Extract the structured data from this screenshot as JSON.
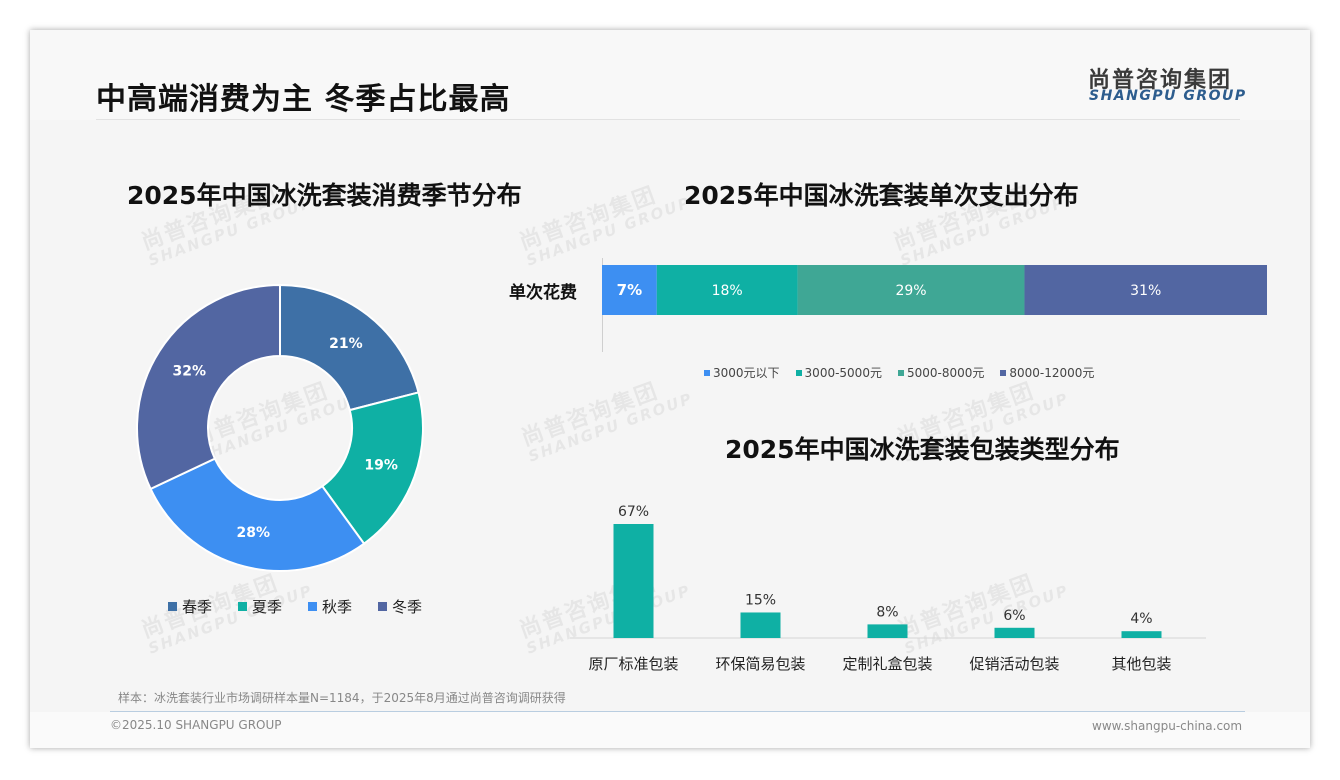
{
  "header": {
    "title": "中高端消费为主 冬季占比最高",
    "logo_cn": "尚普咨询集团",
    "logo_en": "SHANGPU GROUP"
  },
  "watermark": {
    "cn": "尚普咨询集团",
    "en": "SHANGPU GROUP"
  },
  "colors": {
    "spring": "#3e70a6",
    "summer": "#0fb0a4",
    "autumn": "#3d8ff2",
    "winter": "#5266a2",
    "tier1": "#3d8ff2",
    "tier2": "#0fb0a4",
    "tier3": "#3fa795",
    "tier4": "#5266a2",
    "bars": "#0fb0a4"
  },
  "chart_data": [
    {
      "type": "pie",
      "variant": "donut",
      "title": "2025年中国冰洗套装消费季节分布",
      "categories": [
        "春季",
        "夏季",
        "秋季",
        "冬季"
      ],
      "values": [
        21,
        19,
        28,
        32
      ],
      "labels": [
        "21%",
        "19%",
        "28%",
        "32%"
      ],
      "legend": "bottom"
    },
    {
      "type": "bar",
      "variant": "stacked-horizontal-100",
      "title": "2025年中国冰洗套装单次支出分布",
      "categories": [
        "单次花费"
      ],
      "series": [
        {
          "name": "3000元以下",
          "values": [
            7
          ],
          "label": "7%"
        },
        {
          "name": "3000-5000元",
          "values": [
            18
          ],
          "label": "18%"
        },
        {
          "name": "5000-8000元",
          "values": [
            29
          ],
          "label": "29%"
        },
        {
          "name": "8000-12000元",
          "values": [
            31
          ],
          "label": "31%"
        }
      ],
      "legend": "bottom"
    },
    {
      "type": "bar",
      "title": "2025年中国冰洗套装包装类型分布",
      "categories": [
        "原厂标准包装",
        "环保简易包装",
        "定制礼盒包装",
        "促销活动包装",
        "其他包装"
      ],
      "values": [
        67,
        15,
        8,
        6,
        4
      ],
      "labels": [
        "67%",
        "15%",
        "8%",
        "6%",
        "4%"
      ],
      "ylim": [
        0,
        70
      ]
    }
  ],
  "footer": {
    "sample_note": "样本：冰洗套装行业市场调研样本量N=1184，于2025年8月通过尚普咨询调研获得",
    "copyright": "©2025.10 SHANGPU GROUP",
    "website": "www.shangpu-china.com"
  }
}
